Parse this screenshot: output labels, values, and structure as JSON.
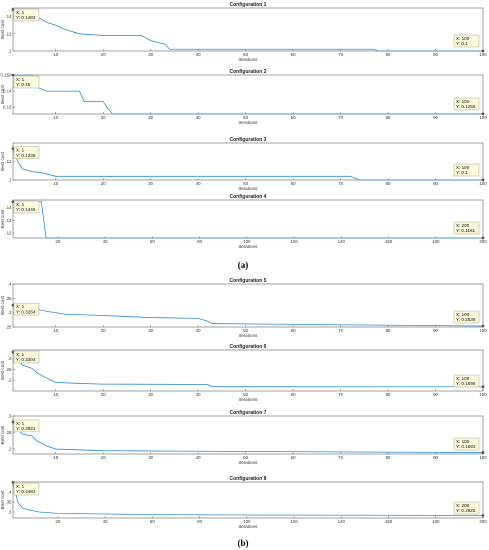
{
  "panel_labels": [
    "(a)",
    "(b)"
  ],
  "chart_data": [
    {
      "type": "line",
      "title": "Configuration 1",
      "xlabel": "Iterations",
      "ylabel": "Best cost",
      "xlim": [
        1,
        100
      ],
      "ylim": [
        0.1,
        0.15
      ],
      "xticks": [
        10,
        20,
        30,
        40,
        50,
        60,
        70,
        80,
        90,
        100
      ],
      "yticks": [
        0.1,
        0.12,
        0.14
      ],
      "grid": false,
      "color": "#2e8bd6",
      "points": [
        [
          1,
          0.1482
        ],
        [
          5,
          0.1482
        ],
        [
          6,
          0.14
        ],
        [
          8,
          0.1335
        ],
        [
          10,
          0.13
        ],
        [
          12,
          0.125
        ],
        [
          15,
          0.12
        ],
        [
          20,
          0.118
        ],
        [
          28,
          0.118
        ],
        [
          30,
          0.112
        ],
        [
          33,
          0.108
        ],
        [
          34,
          0.102
        ],
        [
          77,
          0.102
        ],
        [
          78,
          0.1
        ],
        [
          100,
          0.1
        ]
      ],
      "annotations": [
        {
          "x_label": "X: 1",
          "y_label": "Y: 0.1482",
          "x": 1,
          "y": 0.1482
        },
        {
          "x_label": "X: 100",
          "y_label": "Y: 0.1",
          "x": 100,
          "y": 0.1
        }
      ]
    },
    {
      "type": "line",
      "title": "Configuration 2",
      "xlabel": "Iterations",
      "ylabel": "Best cost",
      "xlim": [
        1,
        100
      ],
      "ylim": [
        0.1258,
        0.15
      ],
      "xticks": [
        10,
        20,
        30,
        40,
        50,
        60,
        70,
        80,
        90,
        100
      ],
      "yticks": [
        0.13,
        0.14,
        0.15
      ],
      "ytick_labels": [
        "0.13",
        "0.14",
        "0.150"
      ],
      "grid": false,
      "color": "#2e8bd6",
      "points": [
        [
          1,
          0.15
        ],
        [
          5,
          0.15
        ],
        [
          6,
          0.1425
        ],
        [
          8,
          0.14
        ],
        [
          15,
          0.14
        ],
        [
          16,
          0.1335
        ],
        [
          20,
          0.1335
        ],
        [
          21,
          0.129
        ],
        [
          22,
          0.1258
        ],
        [
          100,
          0.1258
        ]
      ],
      "annotations": [
        {
          "x_label": "X: 1",
          "y_label": "Y: 0.15",
          "x": 1,
          "y": 0.15
        },
        {
          "x_label": "X: 100",
          "y_label": "Y: 0.1258",
          "x": 100,
          "y": 0.1258
        }
      ]
    },
    {
      "type": "line",
      "title": "Configuration 3",
      "xlabel": "Iterations",
      "ylabel": "Best cost",
      "xlim": [
        1,
        100
      ],
      "ylim": [
        0.1,
        0.14
      ],
      "xticks": [
        10,
        20,
        30,
        40,
        50,
        60,
        70,
        80,
        90,
        100
      ],
      "yticks": [
        0.1,
        0.12
      ],
      "grid": false,
      "color": "#2e8bd6",
      "points": [
        [
          1,
          0.1339
        ],
        [
          2,
          0.12
        ],
        [
          3,
          0.112
        ],
        [
          5,
          0.109
        ],
        [
          7,
          0.108
        ],
        [
          10,
          0.104
        ],
        [
          72,
          0.104
        ],
        [
          74,
          0.1
        ],
        [
          100,
          0.1
        ]
      ],
      "annotations": [
        {
          "x_label": "X: 1",
          "y_label": "Y: 0.1339",
          "x": 1,
          "y": 0.1339
        },
        {
          "x_label": "X: 100",
          "y_label": "Y: 0.1",
          "x": 100,
          "y": 0.1
        }
      ]
    },
    {
      "type": "line",
      "title": "Configuration 4",
      "xlabel": "Iterations",
      "ylabel": "Best cost",
      "xlim": [
        1,
        200
      ],
      "ylim": [
        0.1161,
        0.146
      ],
      "xticks": [
        20,
        40,
        60,
        80,
        100,
        120,
        140,
        160,
        180,
        200
      ],
      "yticks": [
        0.12,
        0.13,
        0.14
      ],
      "grid": false,
      "color": "#2e8bd6",
      "points": [
        [
          1,
          0.1446
        ],
        [
          13,
          0.1446
        ],
        [
          15,
          0.1161
        ],
        [
          200,
          0.1161
        ]
      ],
      "annotations": [
        {
          "x_label": "X: 1",
          "y_label": "Y: 0.1446",
          "x": 1,
          "y": 0.1446
        },
        {
          "x_label": "X: 200",
          "y_label": "Y: 0.1161",
          "x": 200,
          "y": 0.1161
        }
      ]
    },
    {
      "type": "line",
      "title": "Configuration 5",
      "xlabel": "Iterations",
      "ylabel": "Best cost",
      "xlim": [
        1,
        100
      ],
      "ylim": [
        0.25,
        0.4
      ],
      "xticks": [
        10,
        20,
        30,
        40,
        50,
        60,
        70,
        80,
        90,
        100
      ],
      "yticks": [
        0.25,
        0.3,
        0.35,
        0.4
      ],
      "grid": false,
      "color": "#2e8bd6",
      "points": [
        [
          1,
          0.3264
        ],
        [
          4,
          0.3264
        ],
        [
          5,
          0.315
        ],
        [
          8,
          0.305
        ],
        [
          12,
          0.295
        ],
        [
          20,
          0.29
        ],
        [
          30,
          0.283
        ],
        [
          40,
          0.28
        ],
        [
          42,
          0.27
        ],
        [
          43,
          0.262
        ],
        [
          55,
          0.26
        ],
        [
          100,
          0.2536
        ]
      ],
      "annotations": [
        {
          "x_label": "X: 1",
          "y_label": "Y: 0.3264",
          "x": 1,
          "y": 0.3264
        },
        {
          "x_label": "X: 100",
          "y_label": "Y: 0.2536",
          "x": 100,
          "y": 0.2536
        }
      ]
    },
    {
      "type": "line",
      "title": "Configuration 6",
      "xlabel": "Iterations",
      "ylabel": "Best cost",
      "xlim": [
        1,
        100
      ],
      "ylim": [
        0.15,
        0.34
      ],
      "xticks": [
        10,
        20,
        30,
        40,
        50,
        60,
        70,
        80,
        90,
        100
      ],
      "yticks": [
        0.2,
        0.25,
        0.3
      ],
      "grid": false,
      "color": "#2e8bd6",
      "points": [
        [
          1,
          0.3304
        ],
        [
          2,
          0.3
        ],
        [
          3,
          0.27
        ],
        [
          5,
          0.255
        ],
        [
          6,
          0.235
        ],
        [
          8,
          0.21
        ],
        [
          10,
          0.19
        ],
        [
          15,
          0.185
        ],
        [
          20,
          0.182
        ],
        [
          42,
          0.18
        ],
        [
          43,
          0.17
        ],
        [
          100,
          0.1696
        ]
      ],
      "annotations": [
        {
          "x_label": "X: 1",
          "y_label": "Y: 0.3304",
          "x": 1,
          "y": 0.3304
        },
        {
          "x_label": "X: 100",
          "y_label": "Y: 0.1696",
          "x": 100,
          "y": 0.1696
        }
      ]
    },
    {
      "type": "line",
      "title": "Configuration 7",
      "xlabel": "Iterations",
      "ylabel": "Best cost",
      "xlim": [
        1,
        100
      ],
      "ylim": [
        0.185,
        0.3
      ],
      "xticks": [
        10,
        20,
        30,
        40,
        50,
        60,
        70,
        80,
        90,
        100
      ],
      "yticks": [
        0.2,
        0.25,
        0.3
      ],
      "grid": false,
      "color": "#2e8bd6",
      "points": [
        [
          1,
          0.2821
        ],
        [
          2,
          0.26
        ],
        [
          3,
          0.245
        ],
        [
          5,
          0.24
        ],
        [
          6,
          0.225
        ],
        [
          8,
          0.21
        ],
        [
          10,
          0.2
        ],
        [
          20,
          0.195
        ],
        [
          45,
          0.193
        ],
        [
          90,
          0.19
        ],
        [
          100,
          0.1893
        ]
      ],
      "annotations": [
        {
          "x_label": "X: 1",
          "y_label": "Y: 0.2821",
          "x": 1,
          "y": 0.2821
        },
        {
          "x_label": "X: 100",
          "y_label": "Y: 0.1893",
          "x": 100,
          "y": 0.1893
        }
      ]
    },
    {
      "type": "line",
      "title": "Configuration 8",
      "xlabel": "Iterations",
      "ylabel": "Best cost",
      "xlim": [
        1,
        200
      ],
      "ylim": [
        0.27,
        0.45
      ],
      "xticks": [
        20,
        40,
        60,
        80,
        100,
        120,
        140,
        160,
        180,
        200
      ],
      "yticks": [
        0.3,
        0.35,
        0.4
      ],
      "grid": false,
      "color": "#2e8bd6",
      "points": [
        [
          1,
          0.4482
        ],
        [
          2,
          0.4
        ],
        [
          3,
          0.35
        ],
        [
          5,
          0.32
        ],
        [
          8,
          0.31
        ],
        [
          12,
          0.3
        ],
        [
          20,
          0.293
        ],
        [
          40,
          0.29
        ],
        [
          60,
          0.287
        ],
        [
          100,
          0.285
        ],
        [
          200,
          0.2825
        ]
      ],
      "annotations": [
        {
          "x_label": "X: 1",
          "y_label": "Y: 0.4482",
          "x": 1,
          "y": 0.4482
        },
        {
          "x_label": "X: 200",
          "y_label": "Y: 0.2825",
          "x": 200,
          "y": 0.2825
        }
      ]
    }
  ]
}
